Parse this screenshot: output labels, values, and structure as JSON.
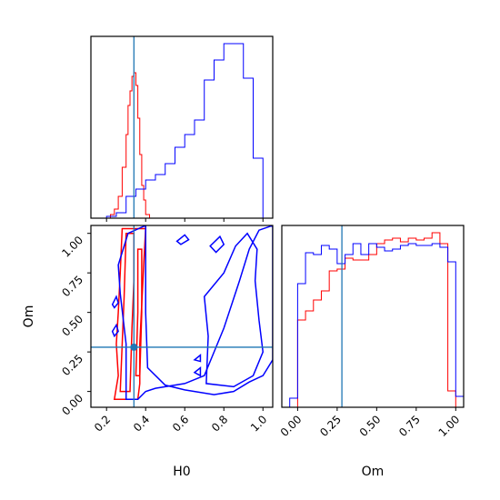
{
  "chart_data": [
    {
      "type": "histogram",
      "panel": "H0 marginal",
      "xlim": [
        0.12,
        1.05
      ],
      "truth": 0.34,
      "series": [
        {
          "color": "#ff0000",
          "bins": [
            {
              "x0": 0.2,
              "x1": 0.22,
              "y": 0.0
            },
            {
              "x0": 0.22,
              "x1": 0.24,
              "y": 0.02
            },
            {
              "x0": 0.24,
              "x1": 0.26,
              "y": 0.05
            },
            {
              "x0": 0.26,
              "x1": 0.28,
              "y": 0.12
            },
            {
              "x0": 0.28,
              "x1": 0.3,
              "y": 0.28
            },
            {
              "x0": 0.3,
              "x1": 0.31,
              "y": 0.46
            },
            {
              "x0": 0.31,
              "x1": 0.32,
              "y": 0.62
            },
            {
              "x0": 0.32,
              "x1": 0.33,
              "y": 0.7
            },
            {
              "x0": 0.33,
              "x1": 0.34,
              "y": 0.78
            },
            {
              "x0": 0.34,
              "x1": 0.35,
              "y": 0.8
            },
            {
              "x0": 0.35,
              "x1": 0.36,
              "y": 0.73
            },
            {
              "x0": 0.36,
              "x1": 0.37,
              "y": 0.55
            },
            {
              "x0": 0.37,
              "x1": 0.38,
              "y": 0.35
            },
            {
              "x0": 0.38,
              "x1": 0.39,
              "y": 0.18
            },
            {
              "x0": 0.39,
              "x1": 0.4,
              "y": 0.1
            },
            {
              "x0": 0.4,
              "x1": 0.42,
              "y": 0.02
            }
          ]
        },
        {
          "color": "#0000ff",
          "bins": [
            {
              "x0": 0.2,
              "x1": 0.25,
              "y": 0.01
            },
            {
              "x0": 0.25,
              "x1": 0.3,
              "y": 0.03
            },
            {
              "x0": 0.3,
              "x1": 0.35,
              "y": 0.12
            },
            {
              "x0": 0.35,
              "x1": 0.4,
              "y": 0.16
            },
            {
              "x0": 0.4,
              "x1": 0.45,
              "y": 0.21
            },
            {
              "x0": 0.45,
              "x1": 0.5,
              "y": 0.24
            },
            {
              "x0": 0.5,
              "x1": 0.55,
              "y": 0.3
            },
            {
              "x0": 0.55,
              "x1": 0.6,
              "y": 0.39
            },
            {
              "x0": 0.6,
              "x1": 0.65,
              "y": 0.46
            },
            {
              "x0": 0.65,
              "x1": 0.7,
              "y": 0.54
            },
            {
              "x0": 0.7,
              "x1": 0.75,
              "y": 0.76
            },
            {
              "x0": 0.75,
              "x1": 0.8,
              "y": 0.87
            },
            {
              "x0": 0.8,
              "x1": 0.85,
              "y": 0.96
            },
            {
              "x0": 0.85,
              "x1": 0.9,
              "y": 0.96
            },
            {
              "x0": 0.9,
              "x1": 0.95,
              "y": 0.77
            },
            {
              "x0": 0.95,
              "x1": 1.0,
              "y": 0.33
            },
            {
              "x0": 1.0,
              "x1": 1.05,
              "y": 0.0
            }
          ]
        }
      ]
    },
    {
      "type": "contour",
      "panel": "H0 vs Om joint",
      "xlabel": "H0",
      "ylabel": "Om",
      "xlim": [
        0.12,
        1.05
      ],
      "ylim": [
        -0.1,
        1.05
      ],
      "xticks": [
        "0.2",
        "0.4",
        "0.6",
        "0.8",
        "1.0"
      ],
      "yticks": [
        "0.00",
        "0.25",
        "0.50",
        "0.75",
        "1.00"
      ],
      "truth": {
        "x": 0.34,
        "y": 0.28
      },
      "series": [
        {
          "color": "#ff0000",
          "contours": [
            [
              [
                0.24,
                -0.05
              ],
              [
                0.26,
                0.1
              ],
              [
                0.25,
                0.3
              ],
              [
                0.26,
                0.5
              ],
              [
                0.27,
                0.75
              ],
              [
                0.28,
                1.03
              ],
              [
                0.4,
                1.03
              ],
              [
                0.39,
                0.8
              ],
              [
                0.38,
                0.55
              ],
              [
                0.37,
                0.3
              ],
              [
                0.37,
                0.05
              ],
              [
                0.36,
                -0.05
              ]
            ],
            [
              [
                0.27,
                0.0
              ],
              [
                0.28,
                0.3
              ],
              [
                0.29,
                0.6
              ],
              [
                0.3,
                1.0
              ],
              [
                0.34,
                1.0
              ],
              [
                0.34,
                0.7
              ],
              [
                0.33,
                0.4
              ],
              [
                0.32,
                0.0
              ]
            ],
            [
              [
                0.35,
                0.1
              ],
              [
                0.36,
                0.5
              ],
              [
                0.36,
                0.9
              ],
              [
                0.38,
                0.9
              ],
              [
                0.38,
                0.5
              ],
              [
                0.37,
                0.1
              ]
            ]
          ]
        },
        {
          "color": "#0000ff",
          "contours": [
            [
              [
                0.3,
                -0.05
              ],
              [
                0.3,
                0.3
              ],
              [
                0.27,
                0.62
              ],
              [
                0.26,
                0.8
              ],
              [
                0.31,
                1.0
              ],
              [
                0.4,
                1.05
              ],
              [
                0.4,
                0.5
              ],
              [
                0.41,
                0.15
              ],
              [
                0.5,
                0.04
              ],
              [
                0.6,
                0.01
              ],
              [
                0.75,
                -0.02
              ],
              [
                0.85,
                0.0
              ],
              [
                0.93,
                0.06
              ],
              [
                1.0,
                0.1
              ],
              [
                1.05,
                0.2
              ],
              [
                1.05,
                1.05
              ],
              [
                0.98,
                1.02
              ],
              [
                0.93,
                0.9
              ],
              [
                0.88,
                0.7
              ],
              [
                0.84,
                0.55
              ],
              [
                0.8,
                0.4
              ],
              [
                0.75,
                0.25
              ],
              [
                0.7,
                0.1
              ],
              [
                0.6,
                0.05
              ],
              [
                0.45,
                0.02
              ],
              [
                0.4,
                0.0
              ],
              [
                0.36,
                -0.05
              ]
            ],
            [
              [
                0.71,
                0.05
              ],
              [
                0.72,
                0.35
              ],
              [
                0.7,
                0.6
              ],
              [
                0.8,
                0.75
              ],
              [
                0.86,
                0.92
              ],
              [
                0.92,
                1.0
              ],
              [
                0.97,
                0.9
              ],
              [
                0.96,
                0.7
              ],
              [
                0.98,
                0.45
              ],
              [
                1.0,
                0.25
              ],
              [
                0.95,
                0.1
              ],
              [
                0.85,
                0.03
              ]
            ],
            [
              [
                0.23,
                0.55
              ],
              [
                0.25,
                0.6
              ],
              [
                0.26,
                0.56
              ],
              [
                0.24,
                0.53
              ]
            ],
            [
              [
                0.23,
                0.38
              ],
              [
                0.25,
                0.42
              ],
              [
                0.26,
                0.38
              ],
              [
                0.24,
                0.35
              ]
            ],
            [
              [
                0.73,
                0.92
              ],
              [
                0.78,
                0.98
              ],
              [
                0.8,
                0.93
              ],
              [
                0.76,
                0.88
              ]
            ],
            [
              [
                0.56,
                0.95
              ],
              [
                0.6,
                0.99
              ],
              [
                0.62,
                0.96
              ],
              [
                0.58,
                0.93
              ]
            ],
            [
              [
                0.65,
                0.12
              ],
              [
                0.68,
                0.15
              ],
              [
                0.68,
                0.1
              ]
            ],
            [
              [
                0.65,
                0.2
              ],
              [
                0.68,
                0.23
              ],
              [
                0.68,
                0.19
              ]
            ]
          ]
        }
      ]
    },
    {
      "type": "histogram",
      "panel": "Om marginal",
      "xlabel": "Om",
      "xlim": [
        -0.1,
        1.05
      ],
      "xticks": [
        "0.00",
        "0.25",
        "0.50",
        "0.75",
        "1.00"
      ],
      "truth": 0.28,
      "series": [
        {
          "color": "#ff0000",
          "bins": [
            {
              "x0": 0.0,
              "x1": 0.05,
              "y": 0.48
            },
            {
              "x0": 0.05,
              "x1": 0.1,
              "y": 0.53
            },
            {
              "x0": 0.1,
              "x1": 0.15,
              "y": 0.59
            },
            {
              "x0": 0.15,
              "x1": 0.2,
              "y": 0.64
            },
            {
              "x0": 0.2,
              "x1": 0.25,
              "y": 0.75
            },
            {
              "x0": 0.25,
              "x1": 0.3,
              "y": 0.76
            },
            {
              "x0": 0.3,
              "x1": 0.35,
              "y": 0.82
            },
            {
              "x0": 0.35,
              "x1": 0.4,
              "y": 0.81
            },
            {
              "x0": 0.4,
              "x1": 0.45,
              "y": 0.81
            },
            {
              "x0": 0.45,
              "x1": 0.5,
              "y": 0.84
            },
            {
              "x0": 0.5,
              "x1": 0.55,
              "y": 0.9
            },
            {
              "x0": 0.55,
              "x1": 0.6,
              "y": 0.92
            },
            {
              "x0": 0.6,
              "x1": 0.65,
              "y": 0.93
            },
            {
              "x0": 0.65,
              "x1": 0.7,
              "y": 0.91
            },
            {
              "x0": 0.7,
              "x1": 0.75,
              "y": 0.93
            },
            {
              "x0": 0.75,
              "x1": 0.8,
              "y": 0.92
            },
            {
              "x0": 0.8,
              "x1": 0.85,
              "y": 0.93
            },
            {
              "x0": 0.85,
              "x1": 0.9,
              "y": 0.96
            },
            {
              "x0": 0.9,
              "x1": 0.95,
              "y": 0.9
            },
            {
              "x0": 0.95,
              "x1": 1.0,
              "y": 0.09
            }
          ]
        },
        {
          "color": "#0000ff",
          "bins": [
            {
              "x0": -0.05,
              "x1": 0.0,
              "y": 0.05
            },
            {
              "x0": 0.0,
              "x1": 0.05,
              "y": 0.68
            },
            {
              "x0": 0.05,
              "x1": 0.1,
              "y": 0.85
            },
            {
              "x0": 0.1,
              "x1": 0.15,
              "y": 0.84
            },
            {
              "x0": 0.15,
              "x1": 0.2,
              "y": 0.89
            },
            {
              "x0": 0.2,
              "x1": 0.25,
              "y": 0.87
            },
            {
              "x0": 0.25,
              "x1": 0.3,
              "y": 0.79
            },
            {
              "x0": 0.3,
              "x1": 0.35,
              "y": 0.84
            },
            {
              "x0": 0.35,
              "x1": 0.4,
              "y": 0.9
            },
            {
              "x0": 0.4,
              "x1": 0.45,
              "y": 0.84
            },
            {
              "x0": 0.45,
              "x1": 0.5,
              "y": 0.9
            },
            {
              "x0": 0.5,
              "x1": 0.55,
              "y": 0.88
            },
            {
              "x0": 0.55,
              "x1": 0.6,
              "y": 0.86
            },
            {
              "x0": 0.6,
              "x1": 0.65,
              "y": 0.87
            },
            {
              "x0": 0.65,
              "x1": 0.7,
              "y": 0.89
            },
            {
              "x0": 0.7,
              "x1": 0.75,
              "y": 0.9
            },
            {
              "x0": 0.75,
              "x1": 0.8,
              "y": 0.89
            },
            {
              "x0": 0.8,
              "x1": 0.85,
              "y": 0.89
            },
            {
              "x0": 0.85,
              "x1": 0.9,
              "y": 0.9
            },
            {
              "x0": 0.9,
              "x1": 0.95,
              "y": 0.88
            },
            {
              "x0": 0.95,
              "x1": 1.0,
              "y": 0.8
            },
            {
              "x0": 1.0,
              "x1": 1.05,
              "y": 0.06
            }
          ]
        }
      ]
    }
  ],
  "colors": {
    "truth_line": "#1f77b4",
    "series_a": "#ff0000",
    "series_b": "#0000ff"
  }
}
